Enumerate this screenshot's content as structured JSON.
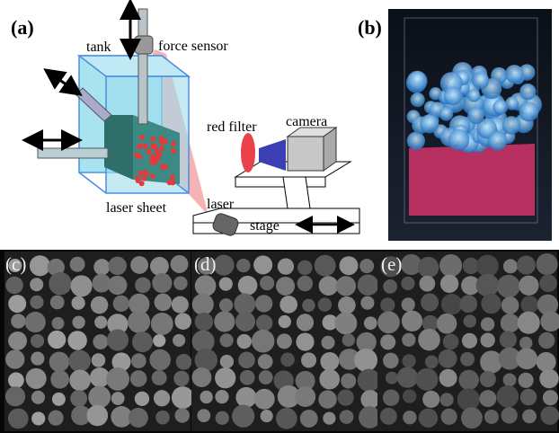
{
  "panels": {
    "a": {
      "label": "(a)",
      "annotations": [
        "tank",
        "force sensor",
        "red filter",
        "camera",
        "laser sheet",
        "laser",
        "stage"
      ]
    },
    "b": {
      "label": "(b)"
    },
    "c": {
      "label": "(c)"
    },
    "d": {
      "label": "(d)"
    },
    "e": {
      "label": "(e)"
    }
  }
}
